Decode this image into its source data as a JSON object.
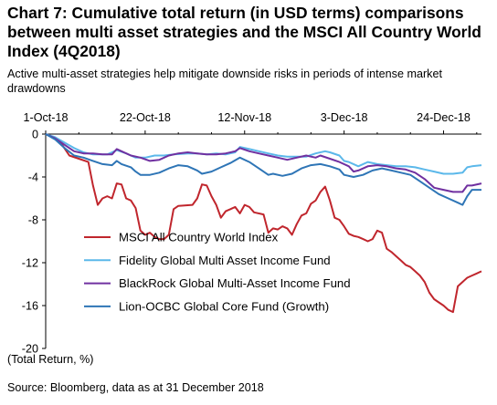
{
  "header": {
    "title": "Chart 7: Cumulative total return (in USD terms) comparisons between multi asset strategies and the MSCI All Country World Index (4Q2018)",
    "subtitle": "Active multi-asset strategies help mitigate downside risks in periods of intense market drawdowns"
  },
  "footer": {
    "source": "Source: Bloomberg, data as at 31 December 2018"
  },
  "chart_data": {
    "type": "line",
    "title": "Chart 7: Cumulative total return (in USD terms) comparisons between multi asset strategies and the MSCI All Country World Index (4Q2018)",
    "subtitle": "Active multi-asset strategies help mitigate downside risks in periods of intense market drawdowns",
    "ylabel": "(Total Return, %)",
    "xlabel": "",
    "x_axis_position": "top",
    "x_ticks": [
      "1-Oct-18",
      "22-Oct-18",
      "12-Nov-18",
      "3-Dec-18",
      "24-Dec-18"
    ],
    "x_tick_offsets_days": [
      0,
      21,
      42,
      63,
      84
    ],
    "y_ticks": [
      0,
      -4,
      -8,
      -12,
      -16,
      -20
    ],
    "ylim": [
      -20,
      0
    ],
    "xlim_days": [
      0,
      92
    ],
    "grid": false,
    "legend_position": "bottom-center",
    "series": [
      {
        "name": "MSCI All Country World Index",
        "color": "#c0262d",
        "points": [
          [
            0,
            0
          ],
          [
            1,
            -0.2
          ],
          [
            3,
            -0.7
          ],
          [
            5,
            -2.0
          ],
          [
            7,
            -2.3
          ],
          [
            9,
            -2.6
          ],
          [
            10,
            -4.8
          ],
          [
            11,
            -6.6
          ],
          [
            12,
            -6.0
          ],
          [
            13,
            -5.8
          ],
          [
            14,
            -6.0
          ],
          [
            15,
            -4.6
          ],
          [
            16,
            -4.7
          ],
          [
            17,
            -6.0
          ],
          [
            18,
            -6.2
          ],
          [
            19,
            -6.9
          ],
          [
            20,
            -9.0
          ],
          [
            21,
            -9.4
          ],
          [
            22,
            -9.2
          ],
          [
            23,
            -9.6
          ],
          [
            24,
            -9.8
          ],
          [
            25,
            -9.8
          ],
          [
            26,
            -9.4
          ],
          [
            27,
            -7.0
          ],
          [
            28,
            -6.7
          ],
          [
            31,
            -6.6
          ],
          [
            32,
            -6.0
          ],
          [
            33,
            -4.7
          ],
          [
            34,
            -4.8
          ],
          [
            35,
            -5.8
          ],
          [
            36,
            -6.6
          ],
          [
            37,
            -7.8
          ],
          [
            38,
            -7.2
          ],
          [
            39,
            -7.0
          ],
          [
            40,
            -6.8
          ],
          [
            41,
            -7.4
          ],
          [
            42,
            -6.6
          ],
          [
            43,
            -6.8
          ],
          [
            44,
            -7.3
          ],
          [
            46,
            -7.5
          ],
          [
            47,
            -9.2
          ],
          [
            48,
            -8.8
          ],
          [
            49,
            -8.9
          ],
          [
            50,
            -8.6
          ],
          [
            51,
            -8.8
          ],
          [
            52,
            -9.4
          ],
          [
            53,
            -8.4
          ],
          [
            54,
            -7.6
          ],
          [
            55,
            -7.4
          ],
          [
            56,
            -6.5
          ],
          [
            57,
            -6.2
          ],
          [
            58,
            -5.4
          ],
          [
            59,
            -4.9
          ],
          [
            60,
            -6.2
          ],
          [
            61,
            -7.8
          ],
          [
            62,
            -8.0
          ],
          [
            63,
            -8.6
          ],
          [
            64,
            -9.3
          ],
          [
            65,
            -9.5
          ],
          [
            66,
            -9.6
          ],
          [
            67,
            -9.8
          ],
          [
            68,
            -10.0
          ],
          [
            69,
            -9.8
          ],
          [
            70,
            -9.0
          ],
          [
            71,
            -9.2
          ],
          [
            72,
            -10.7
          ],
          [
            73,
            -11.0
          ],
          [
            74,
            -11.4
          ],
          [
            75,
            -11.8
          ],
          [
            76,
            -12.2
          ],
          [
            77,
            -12.4
          ],
          [
            78,
            -12.8
          ],
          [
            79,
            -13.2
          ],
          [
            80,
            -13.8
          ],
          [
            81,
            -14.8
          ],
          [
            82,
            -15.4
          ],
          [
            83,
            -15.7
          ],
          [
            84,
            -16.0
          ],
          [
            85,
            -16.4
          ],
          [
            86,
            -16.6
          ],
          [
            87,
            -14.2
          ],
          [
            88,
            -13.8
          ],
          [
            89,
            -13.4
          ],
          [
            90,
            -13.2
          ],
          [
            91,
            -13.0
          ],
          [
            92,
            -12.8
          ]
        ]
      },
      {
        "name": "Fidelity Global Multi Asset Income Fund",
        "color": "#5bb8ea",
        "points": [
          [
            0,
            0
          ],
          [
            2,
            -0.3
          ],
          [
            4,
            -0.8
          ],
          [
            6,
            -1.3
          ],
          [
            8,
            -1.7
          ],
          [
            10,
            -1.9
          ],
          [
            13,
            -1.9
          ],
          [
            15,
            -1.5
          ],
          [
            17,
            -1.8
          ],
          [
            19,
            -2.2
          ],
          [
            21,
            -2.2
          ],
          [
            23,
            -2.0
          ],
          [
            25,
            -2.0
          ],
          [
            27,
            -1.9
          ],
          [
            30,
            -1.8
          ],
          [
            32,
            -1.8
          ],
          [
            34,
            -1.9
          ],
          [
            36,
            -1.8
          ],
          [
            38,
            -1.9
          ],
          [
            40,
            -1.7
          ],
          [
            41,
            -1.2
          ],
          [
            43,
            -1.4
          ],
          [
            45,
            -1.6
          ],
          [
            47,
            -1.8
          ],
          [
            49,
            -2.0
          ],
          [
            51,
            -2.1
          ],
          [
            53,
            -2.1
          ],
          [
            55,
            -2.1
          ],
          [
            57,
            -1.8
          ],
          [
            59,
            -1.6
          ],
          [
            60,
            -1.7
          ],
          [
            62,
            -2.0
          ],
          [
            63,
            -2.5
          ],
          [
            64,
            -2.6
          ],
          [
            66,
            -3.0
          ],
          [
            68,
            -2.6
          ],
          [
            70,
            -2.8
          ],
          [
            72,
            -2.9
          ],
          [
            74,
            -3.0
          ],
          [
            76,
            -3.0
          ],
          [
            78,
            -3.1
          ],
          [
            80,
            -3.3
          ],
          [
            82,
            -3.5
          ],
          [
            84,
            -3.7
          ],
          [
            86,
            -3.7
          ],
          [
            88,
            -3.6
          ],
          [
            89,
            -3.1
          ],
          [
            90,
            -3.0
          ],
          [
            92,
            -2.9
          ]
        ]
      },
      {
        "name": "BlackRock Global Multi-Asset Income Fund",
        "color": "#7030a0",
        "points": [
          [
            0,
            0
          ],
          [
            2,
            -0.4
          ],
          [
            4,
            -1.0
          ],
          [
            6,
            -1.6
          ],
          [
            8,
            -1.8
          ],
          [
            10,
            -1.8
          ],
          [
            12,
            -1.9
          ],
          [
            14,
            -1.9
          ],
          [
            15,
            -1.4
          ],
          [
            16,
            -1.6
          ],
          [
            18,
            -2.0
          ],
          [
            20,
            -2.2
          ],
          [
            22,
            -2.5
          ],
          [
            24,
            -2.4
          ],
          [
            26,
            -2.0
          ],
          [
            28,
            -1.8
          ],
          [
            30,
            -1.7
          ],
          [
            32,
            -1.8
          ],
          [
            34,
            -1.9
          ],
          [
            36,
            -1.9
          ],
          [
            38,
            -1.8
          ],
          [
            40,
            -1.6
          ],
          [
            41,
            -1.3
          ],
          [
            43,
            -1.6
          ],
          [
            45,
            -1.8
          ],
          [
            47,
            -2.0
          ],
          [
            49,
            -2.2
          ],
          [
            51,
            -2.4
          ],
          [
            53,
            -2.2
          ],
          [
            55,
            -2.0
          ],
          [
            57,
            -2.2
          ],
          [
            58,
            -2.0
          ],
          [
            60,
            -2.3
          ],
          [
            62,
            -2.6
          ],
          [
            64,
            -3.0
          ],
          [
            65,
            -3.5
          ],
          [
            66,
            -3.4
          ],
          [
            68,
            -3.0
          ],
          [
            70,
            -2.9
          ],
          [
            72,
            -3.0
          ],
          [
            74,
            -3.2
          ],
          [
            76,
            -3.3
          ],
          [
            78,
            -3.6
          ],
          [
            80,
            -4.2
          ],
          [
            82,
            -5.0
          ],
          [
            84,
            -5.2
          ],
          [
            86,
            -5.4
          ],
          [
            88,
            -5.4
          ],
          [
            89,
            -4.8
          ],
          [
            90,
            -4.8
          ],
          [
            92,
            -4.6
          ]
        ]
      },
      {
        "name": "Lion-OCBC Global Core Fund (Growth)",
        "color": "#2e75b6",
        "points": [
          [
            0,
            0
          ],
          [
            2,
            -0.5
          ],
          [
            4,
            -1.3
          ],
          [
            6,
            -2.0
          ],
          [
            8,
            -2.2
          ],
          [
            10,
            -2.5
          ],
          [
            12,
            -2.8
          ],
          [
            14,
            -2.9
          ],
          [
            15,
            -2.5
          ],
          [
            16,
            -2.8
          ],
          [
            18,
            -3.1
          ],
          [
            19,
            -3.5
          ],
          [
            20,
            -3.8
          ],
          [
            22,
            -3.8
          ],
          [
            24,
            -3.6
          ],
          [
            26,
            -3.2
          ],
          [
            28,
            -2.9
          ],
          [
            30,
            -3.0
          ],
          [
            32,
            -3.4
          ],
          [
            33,
            -3.7
          ],
          [
            35,
            -3.5
          ],
          [
            37,
            -3.1
          ],
          [
            39,
            -2.7
          ],
          [
            41,
            -2.2
          ],
          [
            43,
            -2.6
          ],
          [
            45,
            -3.2
          ],
          [
            47,
            -3.8
          ],
          [
            48,
            -3.7
          ],
          [
            50,
            -3.9
          ],
          [
            52,
            -3.7
          ],
          [
            54,
            -3.2
          ],
          [
            56,
            -2.9
          ],
          [
            58,
            -2.8
          ],
          [
            60,
            -3.0
          ],
          [
            62,
            -3.3
          ],
          [
            63,
            -3.8
          ],
          [
            65,
            -4.0
          ],
          [
            67,
            -3.8
          ],
          [
            69,
            -3.4
          ],
          [
            71,
            -3.2
          ],
          [
            73,
            -3.4
          ],
          [
            75,
            -3.6
          ],
          [
            77,
            -3.8
          ],
          [
            79,
            -4.4
          ],
          [
            81,
            -5.0
          ],
          [
            83,
            -5.6
          ],
          [
            85,
            -6.0
          ],
          [
            87,
            -6.4
          ],
          [
            88,
            -6.6
          ],
          [
            89,
            -5.8
          ],
          [
            90,
            -5.2
          ],
          [
            92,
            -5.2
          ]
        ]
      }
    ]
  }
}
